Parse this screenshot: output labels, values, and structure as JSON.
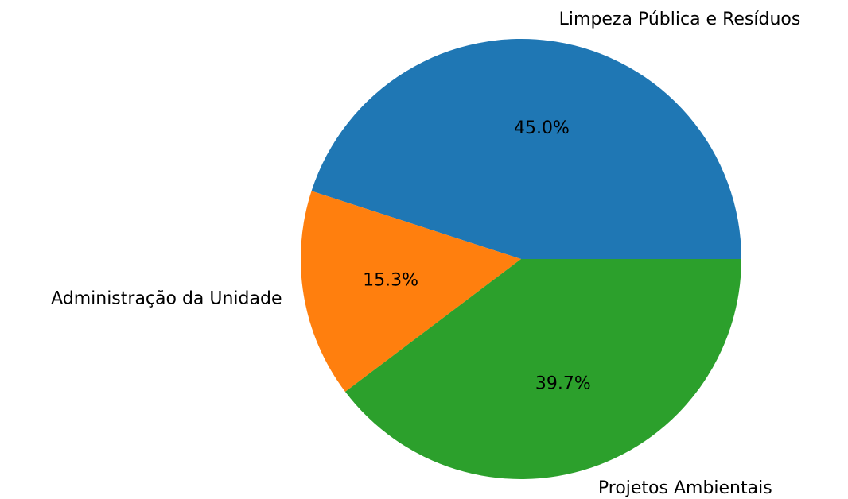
{
  "chart_data": {
    "type": "pie",
    "categories": [
      "Limpeza Pública e Resíduos",
      "Administração da Unidade",
      "Projetos Ambientais"
    ],
    "values": [
      45.0,
      15.3,
      39.7
    ],
    "value_labels": [
      "45.0%",
      "15.3%",
      "39.7%"
    ],
    "colors": [
      "#1f77b4",
      "#ff7f0e",
      "#2ca02c"
    ]
  }
}
